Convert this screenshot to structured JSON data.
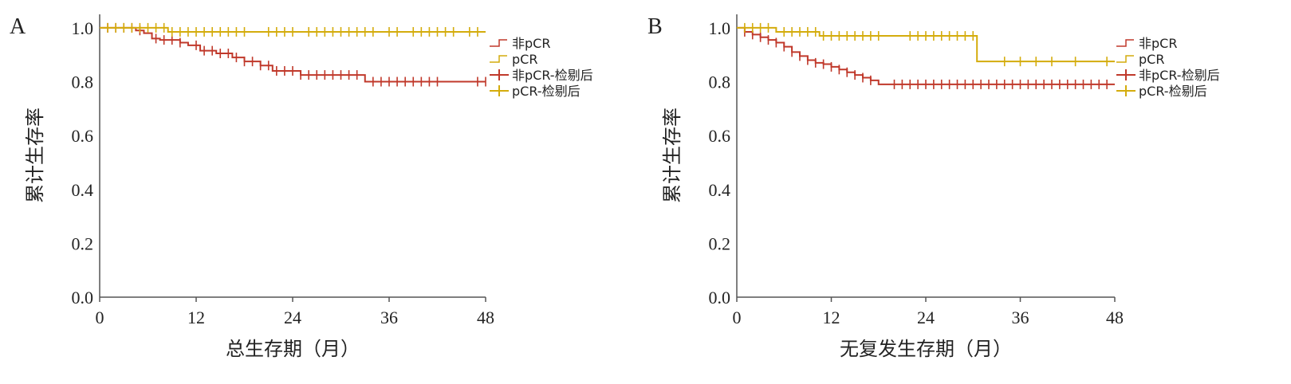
{
  "colors": {
    "non_pcr": "#c0392b",
    "pcr": "#d4ac0d",
    "axis": "#555555"
  },
  "chart_data": [
    {
      "type": "line",
      "panel_label": "A",
      "xlabel": "总生存期（月）",
      "ylabel": "累计生存率",
      "xlim": [
        0,
        48
      ],
      "ylim": [
        0,
        1.05
      ],
      "xticks": [
        0,
        12,
        24,
        36,
        48
      ],
      "xtick_labels": [
        "0",
        "12",
        "24",
        "36",
        "48"
      ],
      "yticks": [
        0.0,
        0.2,
        0.4,
        0.6,
        0.8,
        1.0
      ],
      "ytick_labels": [
        "0.0",
        "0.2",
        "0.4",
        "0.6",
        "0.8",
        "1.0"
      ],
      "legend": [
        "非pCR",
        "pCR",
        "非pCR-检剔后",
        "pCR-检剔后"
      ],
      "legend_position": "right",
      "series": [
        {
          "name": "非pCR",
          "color_key": "non_pcr",
          "steps": [
            [
              0,
              1.0
            ],
            [
              4.5,
              0.99
            ],
            [
              5.5,
              0.98
            ],
            [
              6.5,
              0.96
            ],
            [
              7.5,
              0.955
            ],
            [
              10,
              0.945
            ],
            [
              11,
              0.935
            ],
            [
              12.5,
              0.915
            ],
            [
              14.5,
              0.905
            ],
            [
              16.5,
              0.89
            ],
            [
              18,
              0.875
            ],
            [
              20,
              0.86
            ],
            [
              21.5,
              0.84
            ],
            [
              25,
              0.825
            ],
            [
              33,
              0.8
            ],
            [
              48,
              0.8
            ]
          ],
          "censored": [
            1,
            2,
            3,
            4,
            5,
            7,
            8,
            9,
            10,
            12,
            13,
            14,
            15,
            16,
            17,
            18,
            19,
            20,
            21,
            22,
            23,
            24,
            25,
            26,
            27,
            28,
            29,
            30,
            31,
            32,
            34,
            35,
            36,
            37,
            38,
            39,
            40,
            41,
            42,
            47,
            48
          ]
        },
        {
          "name": "pCR",
          "color_key": "pcr",
          "steps": [
            [
              0,
              1.0
            ],
            [
              8.5,
              0.985
            ],
            [
              48,
              0.985
            ]
          ],
          "censored": [
            1,
            2,
            3,
            4,
            5,
            6,
            7,
            8,
            9,
            10,
            11,
            12,
            13,
            14,
            15,
            16,
            17,
            18,
            21,
            22,
            23,
            24,
            26,
            27,
            28,
            29,
            30,
            31,
            32,
            33,
            34,
            36,
            37,
            39,
            40,
            41,
            42,
            43,
            44,
            46,
            47
          ]
        }
      ]
    },
    {
      "type": "line",
      "panel_label": "B",
      "xlabel": "无复发生存期（月）",
      "ylabel": "累计生存率",
      "xlim": [
        0,
        48
      ],
      "ylim": [
        0,
        1.05
      ],
      "xticks": [
        0,
        12,
        24,
        36,
        48
      ],
      "xtick_labels": [
        "0",
        "12",
        "24",
        "36",
        "48"
      ],
      "yticks": [
        0.0,
        0.2,
        0.4,
        0.6,
        0.8,
        1.0
      ],
      "ytick_labels": [
        "0.0",
        "0.2",
        "0.4",
        "0.6",
        "0.8",
        "1.0"
      ],
      "legend": [
        "非pCR",
        "pCR",
        "非pCR-检剔后",
        "pCR-检剔后"
      ],
      "legend_position": "right",
      "series": [
        {
          "name": "非pCR",
          "color_key": "non_pcr",
          "steps": [
            [
              0,
              1.0
            ],
            [
              1,
              0.985
            ],
            [
              2,
              0.975
            ],
            [
              3,
              0.965
            ],
            [
              4,
              0.955
            ],
            [
              5,
              0.945
            ],
            [
              6,
              0.93
            ],
            [
              7,
              0.91
            ],
            [
              8,
              0.895
            ],
            [
              9,
              0.88
            ],
            [
              10,
              0.87
            ],
            [
              11,
              0.865
            ],
            [
              12,
              0.855
            ],
            [
              13,
              0.845
            ],
            [
              14,
              0.835
            ],
            [
              15,
              0.825
            ],
            [
              16,
              0.815
            ],
            [
              17,
              0.805
            ],
            [
              18,
              0.79
            ],
            [
              48,
              0.79
            ]
          ],
          "censored": [
            1,
            2,
            3,
            4,
            5,
            6,
            7,
            8,
            9,
            10,
            11,
            12,
            13,
            14,
            15,
            16,
            17,
            20,
            21,
            22,
            23,
            24,
            25,
            26,
            27,
            28,
            29,
            30,
            31,
            32,
            33,
            34,
            35,
            36,
            37,
            38,
            39,
            40,
            41,
            42,
            43,
            44,
            45,
            46,
            47
          ]
        },
        {
          "name": "pCR",
          "color_key": "pcr",
          "steps": [
            [
              0,
              1.0
            ],
            [
              5,
              0.985
            ],
            [
              10.5,
              0.97
            ],
            [
              30.5,
              0.875
            ],
            [
              48,
              0.875
            ]
          ],
          "censored": [
            1,
            2,
            3,
            4,
            6,
            7,
            8,
            9,
            10,
            11,
            12,
            13,
            14,
            15,
            16,
            17,
            18,
            22,
            23,
            24,
            25,
            26,
            27,
            28,
            29,
            30,
            34,
            36,
            38,
            40,
            43,
            47
          ]
        }
      ]
    }
  ]
}
